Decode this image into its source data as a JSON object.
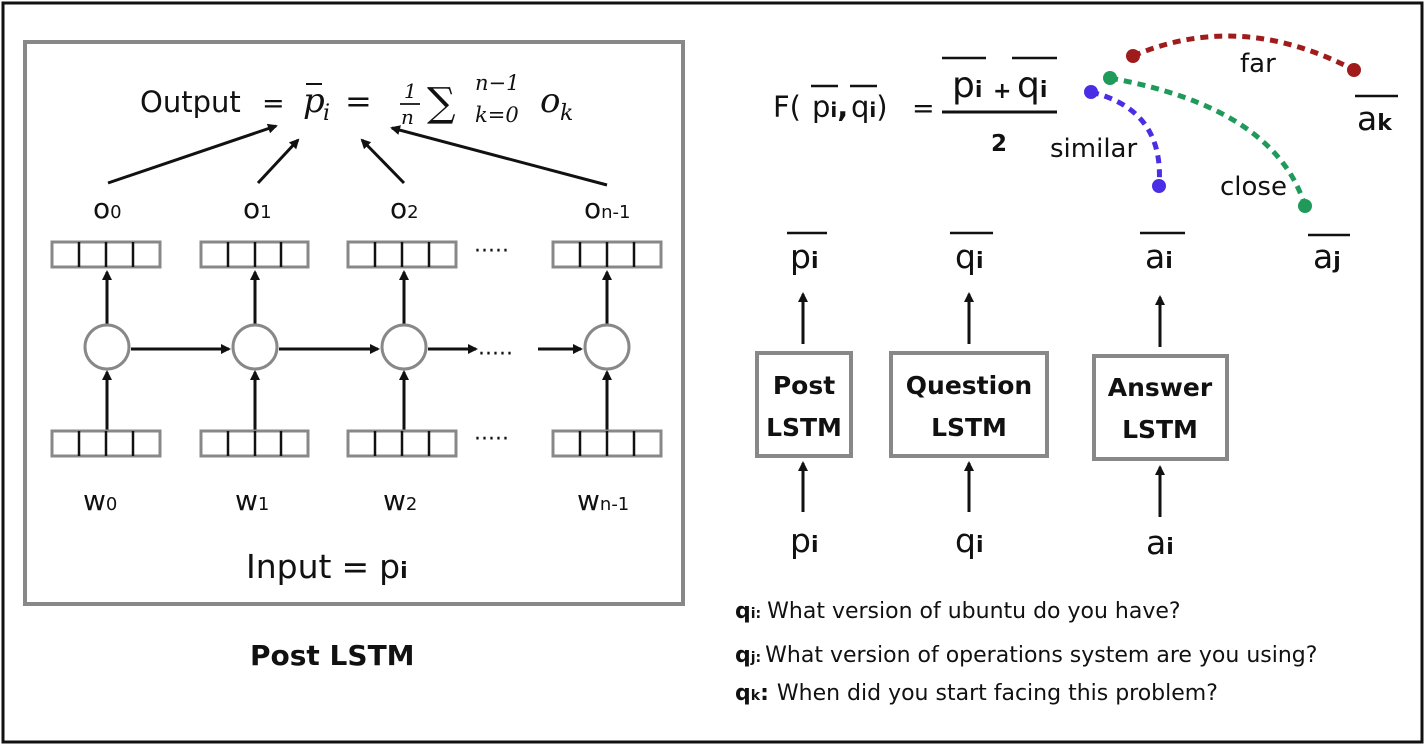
{
  "post_lstm_panel": {
    "output_label": "Output",
    "equals": "=",
    "formula": {
      "p_bar": "p",
      "p_sub": "i",
      "frac_num": "1",
      "frac_den": "n",
      "sigma": "∑",
      "sum_upper": "n−1",
      "sum_lower": "k=0",
      "o": "o",
      "o_sub": "k"
    },
    "outputs": [
      {
        "base": "o",
        "sub": "0"
      },
      {
        "base": "o",
        "sub": "1"
      },
      {
        "base": "o",
        "sub": "2"
      },
      {
        "base": "o",
        "sub": "n-1"
      }
    ],
    "inputs": [
      {
        "base": "w",
        "sub": "0"
      },
      {
        "base": "w",
        "sub": "1"
      },
      {
        "base": "w",
        "sub": "2"
      },
      {
        "base": "w",
        "sub": "n-1"
      }
    ],
    "ellipsis": "·····",
    "input_label": "Input",
    "input_var": "p",
    "input_sub": "i",
    "caption": "Post LSTM"
  },
  "similarity": {
    "F": "F(",
    "p": "p",
    "p_sub": "i",
    "comma": ",",
    "q": "q",
    "q_sub": "i",
    "close_paren": ")",
    "equals": "=",
    "plus": "+",
    "denominator": "2",
    "labels": {
      "far": "far",
      "similar": "similar",
      "close": "close"
    },
    "a_k": {
      "base": "a",
      "sub": "k"
    },
    "a_j": {
      "base": "a",
      "sub": "j"
    },
    "colors": {
      "far": "#a01c1c",
      "similar": "#4a2ee6",
      "close": "#1f9a5a"
    }
  },
  "encoders": [
    {
      "out_base": "p",
      "out_sub": "i",
      "box_line1": "Post",
      "box_line2": "LSTM",
      "in_base": "p",
      "in_sub": "i"
    },
    {
      "out_base": "q",
      "out_sub": "i",
      "box_line1": "Question",
      "box_line2": "LSTM",
      "in_base": "q",
      "in_sub": "i"
    },
    {
      "out_base": "a",
      "out_sub": "i",
      "box_line1": "Answer",
      "box_line2": "LSTM",
      "in_base": "a",
      "in_sub": "i"
    }
  ],
  "examples": [
    {
      "var": "q",
      "sub": "i:",
      "text": "What version of ubuntu do you have?"
    },
    {
      "var": "q",
      "sub": "j:",
      "text": "What version of operations system are you using?"
    },
    {
      "var": "q",
      "sub": "k",
      "colon": ":",
      "text": "When did you start facing this problem?"
    }
  ]
}
